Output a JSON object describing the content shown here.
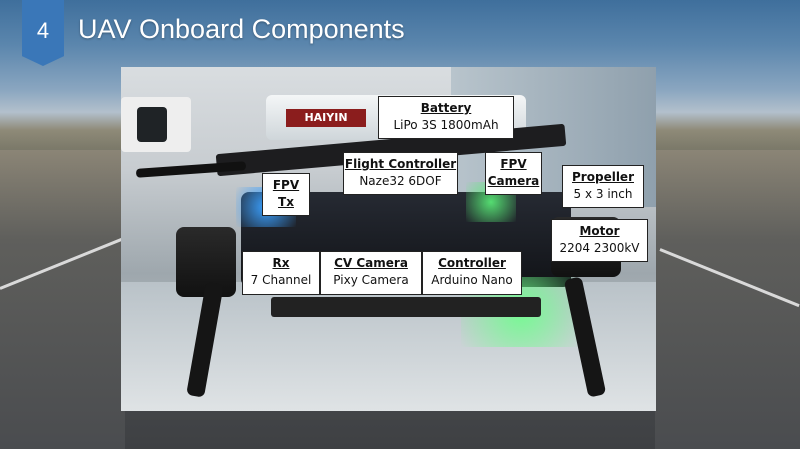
{
  "slide": {
    "number": "4",
    "title": "UAV Onboard Components"
  },
  "labels": {
    "battery": {
      "name": "Battery",
      "detail": "LiPo 3S 1800mAh"
    },
    "flight_controller": {
      "name": "Flight Controller",
      "detail": "Naze32 6DOF"
    },
    "fpv_camera": {
      "name": "FPV",
      "detail": "Camera"
    },
    "fpv_tx": {
      "name": "FPV",
      "detail": "Tx"
    },
    "propeller": {
      "name": "Propeller",
      "detail": "5 x 3 inch"
    },
    "motor": {
      "name": "Motor",
      "detail": "2204 2300kV"
    },
    "rx": {
      "name": "Rx",
      "detail": "7 Channel"
    },
    "cv_camera": {
      "name": "CV Camera",
      "detail": "Pixy Camera"
    },
    "controller": {
      "name": "Controller",
      "detail": "Arduino Nano"
    }
  },
  "photo_brand": "HAIYIN",
  "colors": {
    "badge": "#3a77b8",
    "title": "#ffffff",
    "label_bg": "#ffffff"
  }
}
